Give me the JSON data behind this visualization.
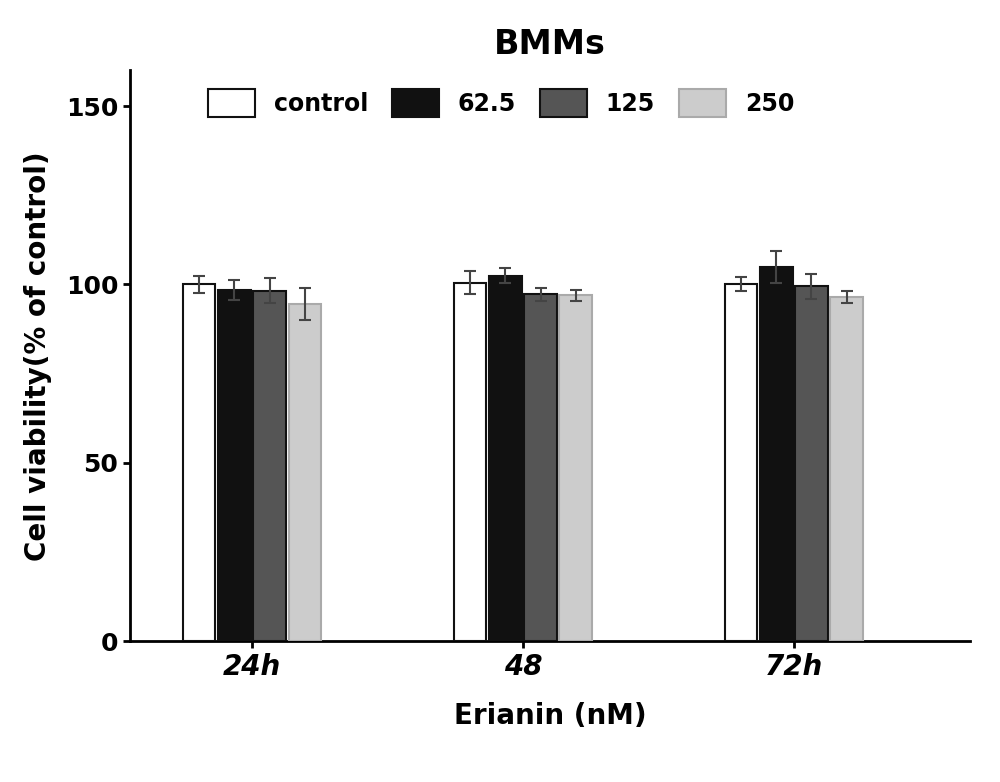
{
  "title": "BMMs",
  "xlabel": "Erianin (nM)",
  "ylabel": "Cell viability(% of control)",
  "groups": [
    "24h",
    "48",
    "72h"
  ],
  "series_labels": [
    "control",
    "62.5",
    "125",
    "250"
  ],
  "bar_colors": [
    "#ffffff",
    "#111111",
    "#555555",
    "#cccccc"
  ],
  "bar_edgecolors": [
    "#111111",
    "#111111",
    "#111111",
    "#aaaaaa"
  ],
  "values": [
    [
      100.0,
      98.5,
      98.2,
      94.5
    ],
    [
      100.5,
      102.5,
      97.2,
      97.0
    ],
    [
      100.2,
      105.0,
      99.5,
      96.5
    ]
  ],
  "errors": [
    [
      2.5,
      2.8,
      3.5,
      4.5
    ],
    [
      3.2,
      2.2,
      1.8,
      1.5
    ],
    [
      2.0,
      4.5,
      3.5,
      1.8
    ]
  ],
  "ylim": [
    0,
    160
  ],
  "yticks": [
    0,
    50,
    100,
    150
  ],
  "bar_width": 0.12,
  "group_positions": [
    1.0,
    2.0,
    3.0
  ],
  "title_fontsize": 24,
  "axis_label_fontsize": 20,
  "tick_fontsize": 18,
  "legend_fontsize": 17,
  "background_color": "#ffffff"
}
